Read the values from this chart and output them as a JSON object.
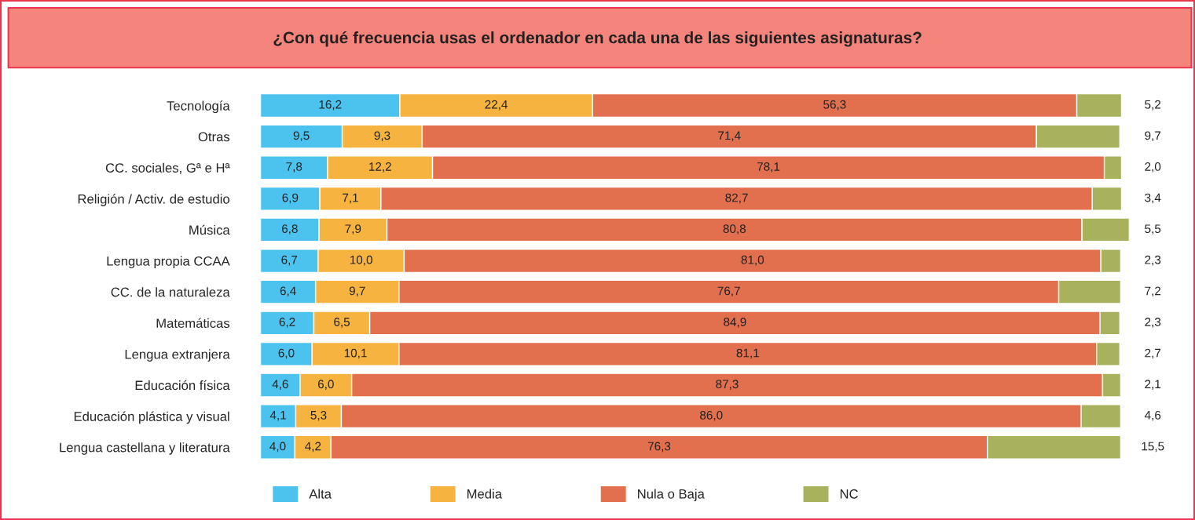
{
  "chart_data": {
    "type": "bar",
    "orientation": "horizontal",
    "stacked": true,
    "title": "¿Con qué frecuencia usas el ordenador en cada una de las siguientes asignaturas?",
    "categories": [
      "Tecnología",
      "Otras",
      "CC. sociales, Gª e Hª",
      "Religión / Activ. de estudio",
      "Música",
      "Lengua propia CCAA",
      "CC. de la naturaleza",
      "Matemáticas",
      "Lengua extranjera",
      "Educación física",
      "Educación plástica y visual",
      "Lengua castellana y literatura"
    ],
    "series": [
      {
        "name": "Alta",
        "color": "#4cc3ef",
        "values": [
          16.2,
          9.5,
          7.8,
          6.9,
          6.8,
          6.7,
          6.4,
          6.2,
          6.0,
          4.6,
          4.1,
          4.0
        ],
        "value_labels": [
          "16,2",
          "9,5",
          "7,8",
          "6,9",
          "6,8",
          "6,7",
          "6,4",
          "6,2",
          "6,0",
          "4,6",
          "4,1",
          "4,0"
        ]
      },
      {
        "name": "Media",
        "color": "#f6b33f",
        "values": [
          22.4,
          9.3,
          12.2,
          7.1,
          7.9,
          10.0,
          9.7,
          6.5,
          10.1,
          6.0,
          5.3,
          4.2
        ],
        "value_labels": [
          "22,4",
          "9,3",
          "12,2",
          "7,1",
          "7,9",
          "10,0",
          "9,7",
          "6,5",
          "10,1",
          "6,0",
          "5,3",
          "4,2"
        ]
      },
      {
        "name": "Nula o Baja",
        "color": "#e2704f",
        "values": [
          56.3,
          71.4,
          78.1,
          82.7,
          80.8,
          81.0,
          76.7,
          84.9,
          81.1,
          87.3,
          86.0,
          76.3
        ],
        "value_labels": [
          "56,3",
          "71,4",
          "78,1",
          "82,7",
          "80,8",
          "81,0",
          "76,7",
          "84,9",
          "81,1",
          "87,3",
          "86,0",
          "76,3"
        ]
      },
      {
        "name": "NC",
        "color": "#a8b25d",
        "values": [
          5.2,
          9.7,
          2.0,
          3.4,
          5.5,
          2.3,
          7.2,
          2.3,
          2.7,
          2.1,
          4.6,
          15.5
        ],
        "value_labels": [
          "5,2",
          "9,7",
          "2,0",
          "3,4",
          "5,5",
          "2,3",
          "7,2",
          "2,3",
          "2,7",
          "2,1",
          "4,6",
          "15,5"
        ]
      }
    ],
    "legend": "bottom",
    "grid": false,
    "tick_labels": "y"
  }
}
